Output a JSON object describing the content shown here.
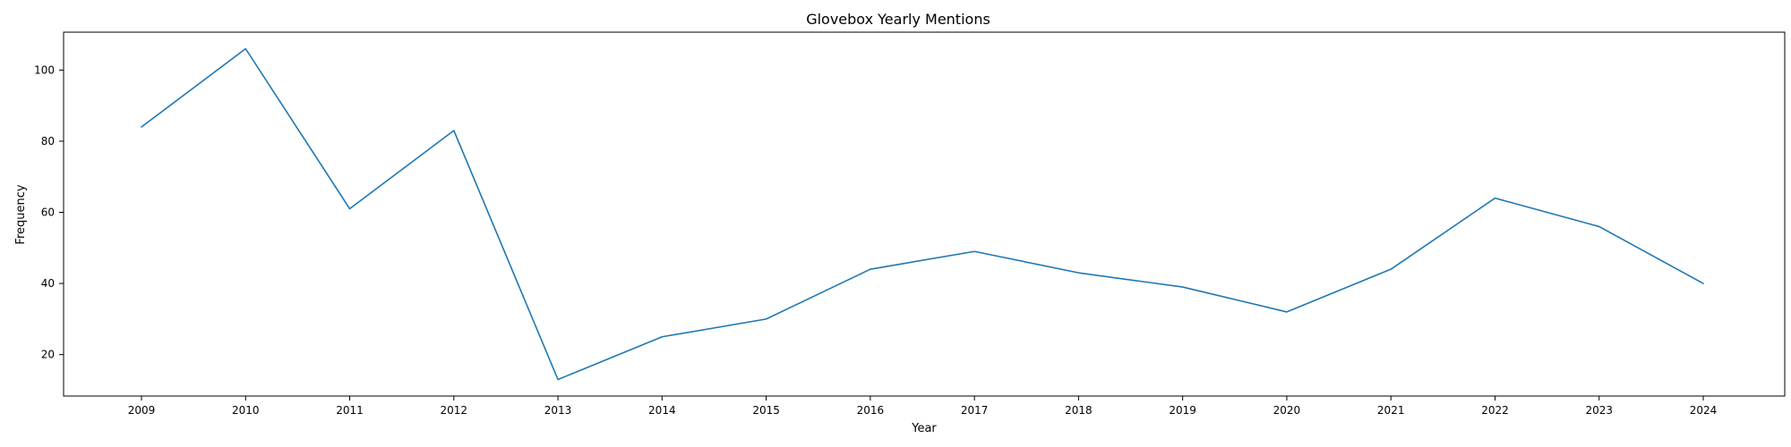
{
  "chart_data": {
    "type": "line",
    "title": "Glovebox Yearly Mentions",
    "xlabel": "Year",
    "ylabel": "Frequency",
    "x": [
      "2009",
      "2010",
      "2011",
      "2012",
      "2013",
      "2014",
      "2015",
      "2016",
      "2017",
      "2018",
      "2019",
      "2020",
      "2021",
      "2022",
      "2023",
      "2024"
    ],
    "series": [
      {
        "values": [
          84,
          106,
          61,
          83,
          13,
          25,
          30,
          44,
          49,
          43,
          39,
          32,
          44,
          64,
          56,
          40
        ],
        "color": "#1f77b4"
      }
    ],
    "yticks": [
      20,
      40,
      60,
      80,
      100
    ],
    "ylim": [
      8.35,
      110.65
    ],
    "grid": false,
    "legend": "none"
  }
}
